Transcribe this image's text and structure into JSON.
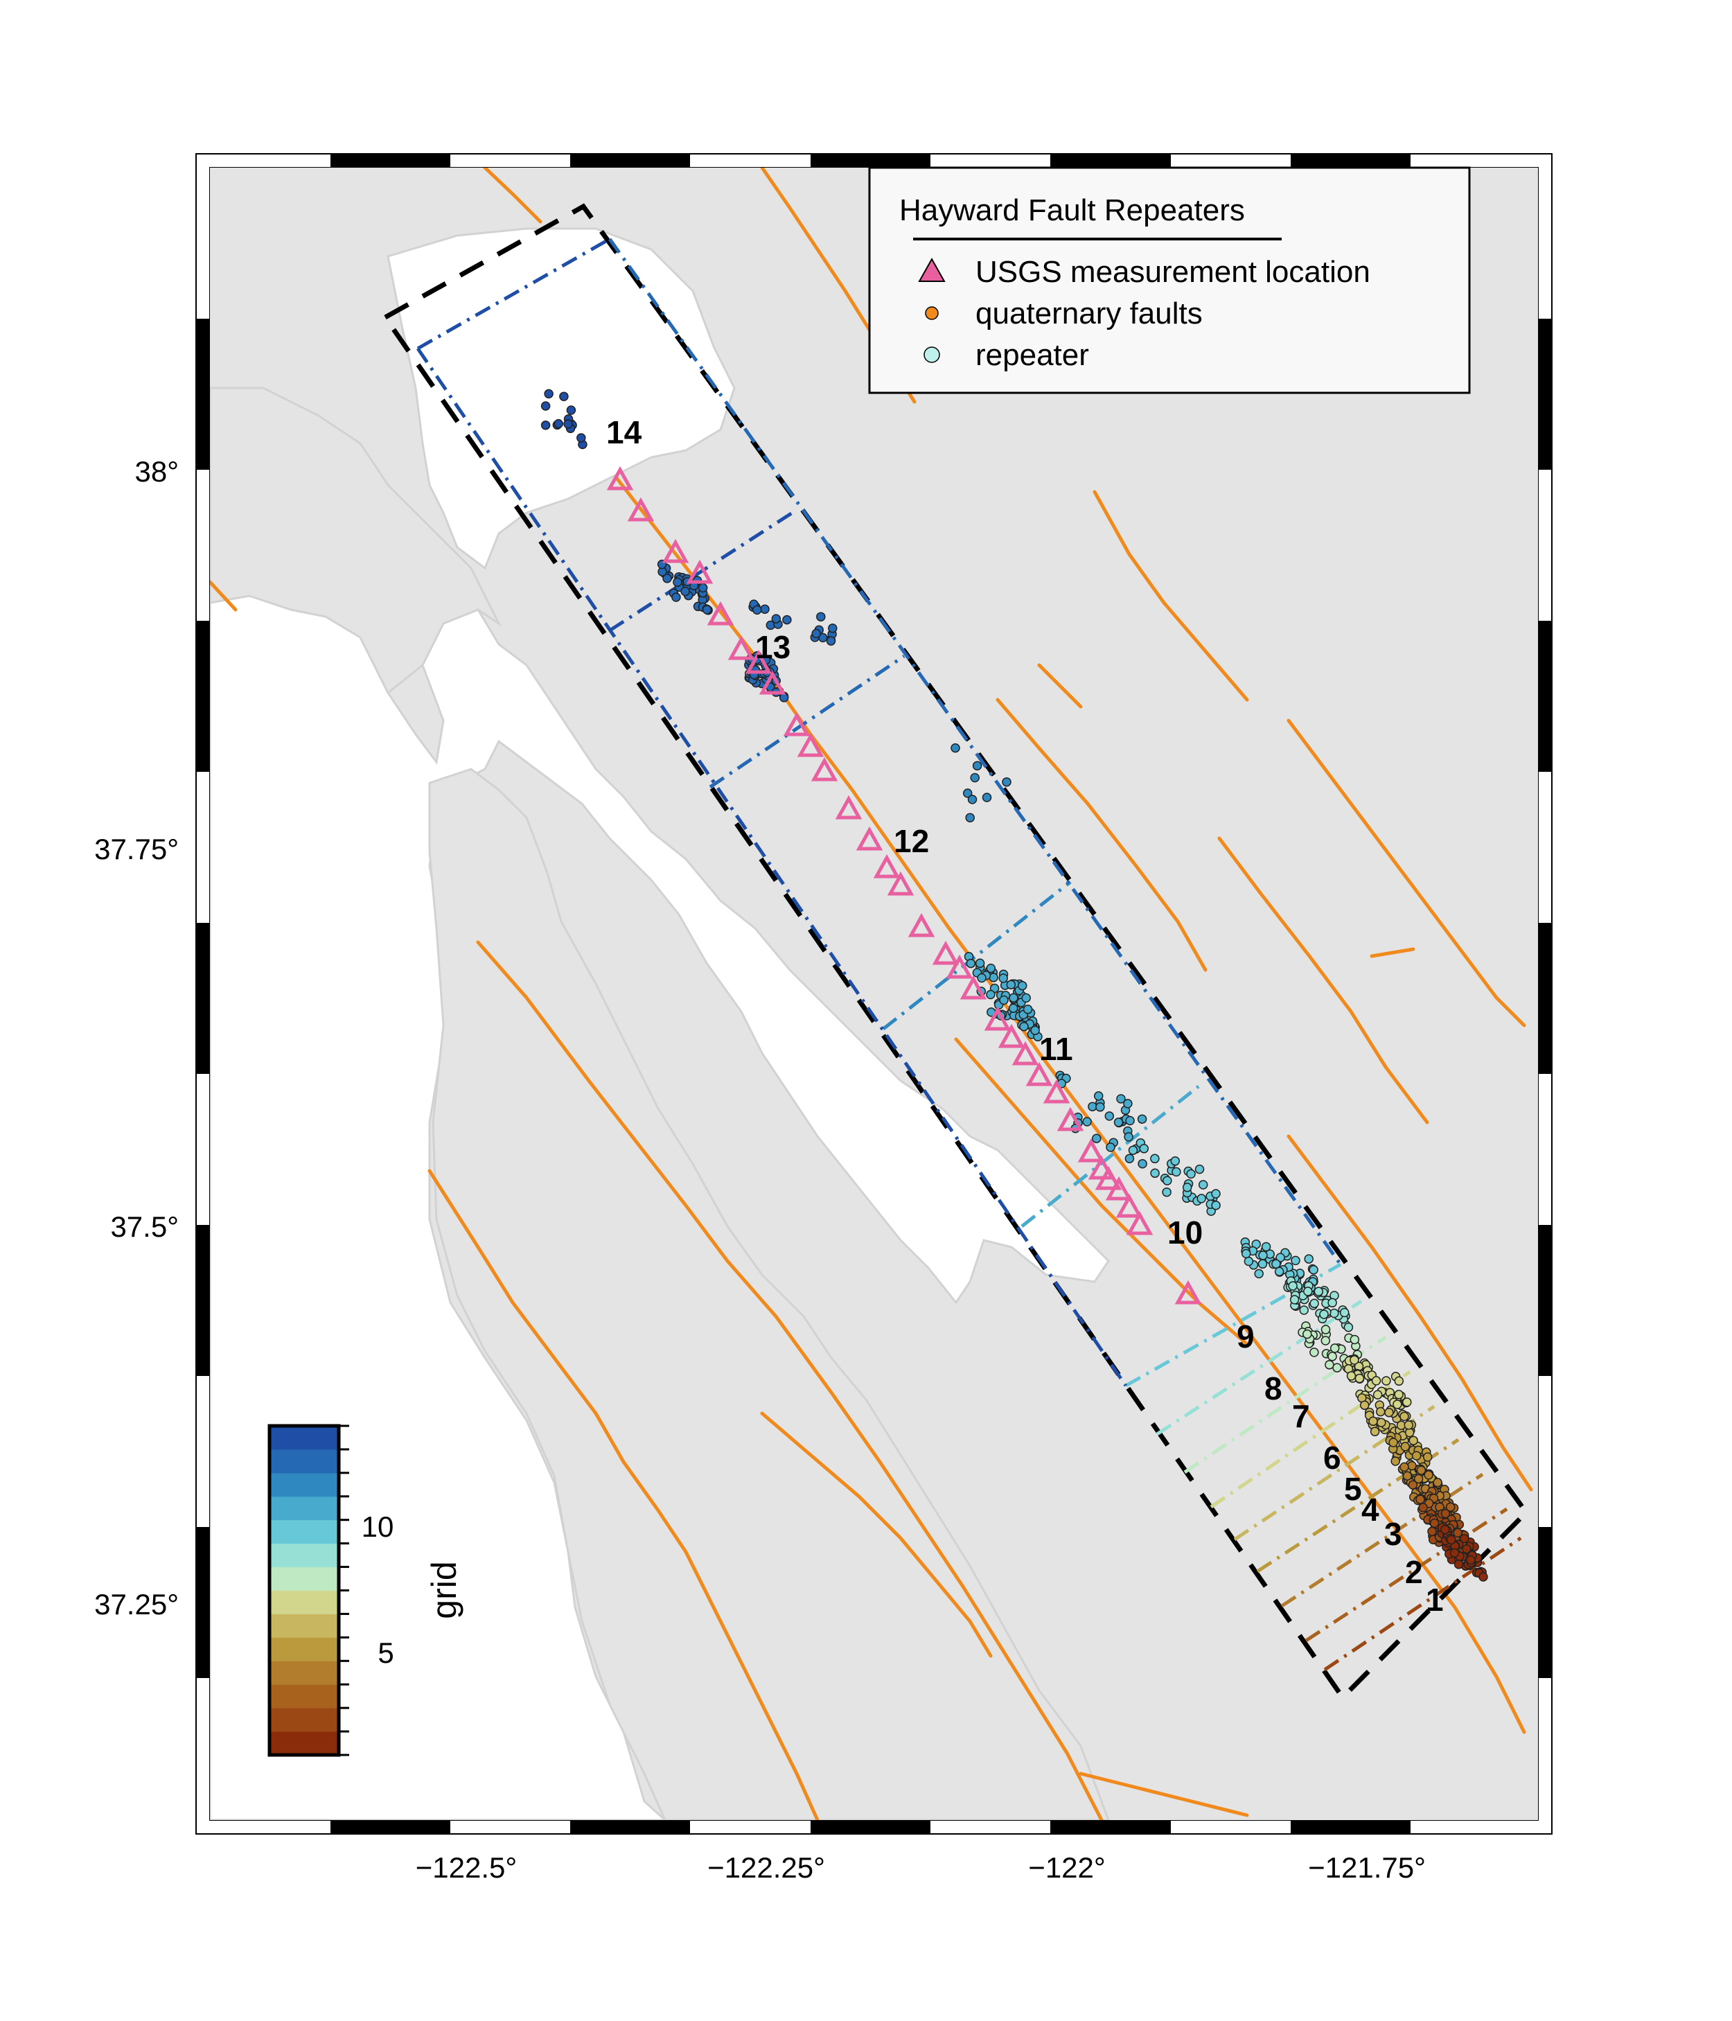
{
  "legend": {
    "title": "Hayward Fault Repeaters",
    "items": [
      {
        "label": "USGS measurement location",
        "symbol": "triangle",
        "color": "#e8609f"
      },
      {
        "label": "quaternary faults",
        "symbol": "circle",
        "color": "#f08a1c"
      },
      {
        "label": "repeater",
        "symbol": "circle",
        "color": "#bff0ec"
      }
    ]
  },
  "axes": {
    "x_ticks": [
      "−122.5°",
      "−122.25°",
      "−122°",
      "−121.75°"
    ],
    "y_ticks": [
      "38°",
      "37.75°",
      "37.5°",
      "37.25°"
    ]
  },
  "colorbar": {
    "label": "grid",
    "ticks": [
      "10",
      "5"
    ],
    "range": [
      1,
      14
    ],
    "colors": [
      "#8a2c0a",
      "#9c4814",
      "#a8621e",
      "#b27d2c",
      "#bb9a3e",
      "#c8b660",
      "#d2d68c",
      "#bfe9c2",
      "#96e0d6",
      "#67c8d8",
      "#48aacc",
      "#3088c0",
      "#2568b4",
      "#1e4ea6"
    ]
  },
  "grid_numbers": [
    "1",
    "2",
    "3",
    "4",
    "5",
    "6",
    "7",
    "8",
    "9",
    "10",
    "11",
    "12",
    "13",
    "14"
  ],
  "colors": {
    "land": "#e4e4e4",
    "water": "#ffffff",
    "faults": "#f08a1c",
    "measurement": "#e8609f"
  }
}
